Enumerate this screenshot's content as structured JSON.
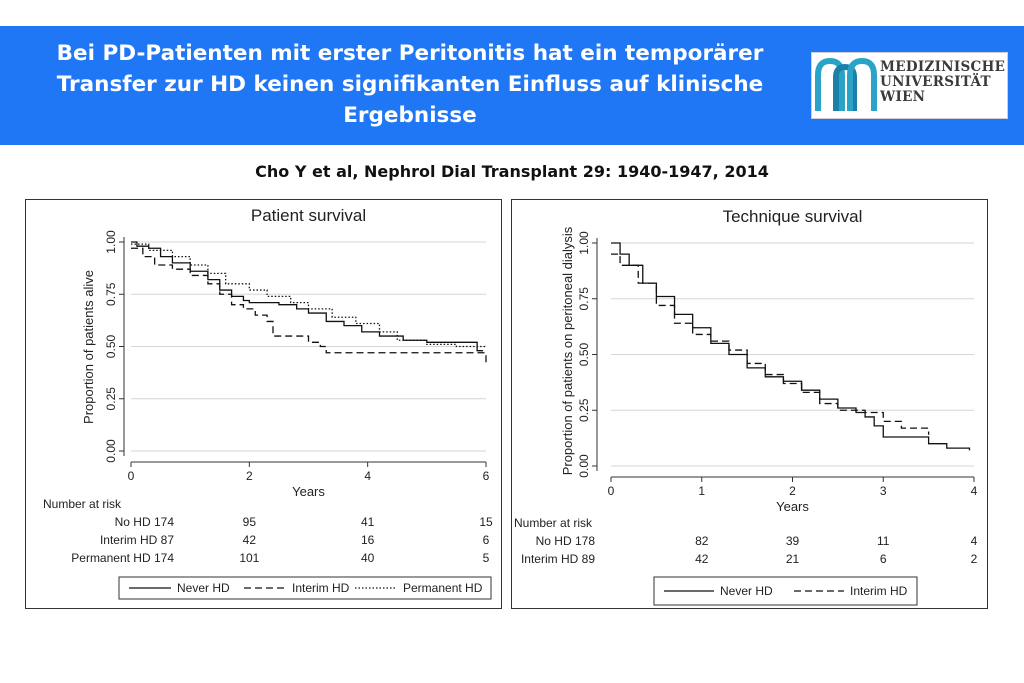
{
  "header": {
    "title": "Bei PD-Patienten mit erster Peritonitis hat ein temporärer Transfer zur HD keinen signifikanten Einfluss auf klinische Ergebnisse",
    "logo_lines": [
      "MEDIZINISCHE",
      "UNIVERSITÄT",
      "WIEN"
    ],
    "background_color": "#1f77f5"
  },
  "citation": "Cho Y et al, Nephrol Dial Transplant 29: 1940-1947, 2014",
  "chart_data": [
    {
      "type": "line",
      "title": "Patient survival",
      "xlabel": "Years",
      "ylabel": "Proportion of patients alive",
      "xlim": [
        0,
        6
      ],
      "ylim": [
        0,
        1
      ],
      "x_ticks": [
        0,
        2,
        4,
        6
      ],
      "y_ticks": [
        "0.00",
        "0.25",
        "0.50",
        "0.75",
        "1.00"
      ],
      "grid": true,
      "series": [
        {
          "name": "Never HD",
          "style": "solid",
          "points": [
            [
              0,
              1.0
            ],
            [
              0.1,
              0.98
            ],
            [
              0.3,
              0.97
            ],
            [
              0.5,
              0.93
            ],
            [
              0.7,
              0.9
            ],
            [
              1.0,
              0.86
            ],
            [
              1.3,
              0.82
            ],
            [
              1.5,
              0.77
            ],
            [
              1.7,
              0.74
            ],
            [
              1.9,
              0.72
            ],
            [
              2.0,
              0.71
            ],
            [
              2.5,
              0.7
            ],
            [
              2.8,
              0.68
            ],
            [
              3.0,
              0.66
            ],
            [
              3.3,
              0.62
            ],
            [
              3.6,
              0.6
            ],
            [
              3.9,
              0.57
            ],
            [
              4.2,
              0.55
            ],
            [
              4.6,
              0.53
            ],
            [
              5.0,
              0.52
            ],
            [
              5.5,
              0.52
            ],
            [
              5.85,
              0.52
            ],
            [
              5.85,
              0.48
            ],
            [
              5.95,
              0.48
            ]
          ]
        },
        {
          "name": "Interim HD",
          "style": "dashed",
          "points": [
            [
              0,
              0.97
            ],
            [
              0.2,
              0.93
            ],
            [
              0.4,
              0.89
            ],
            [
              0.7,
              0.87
            ],
            [
              1.0,
              0.84
            ],
            [
              1.3,
              0.8
            ],
            [
              1.5,
              0.75
            ],
            [
              1.7,
              0.7
            ],
            [
              1.9,
              0.68
            ],
            [
              2.1,
              0.65
            ],
            [
              2.3,
              0.62
            ],
            [
              2.4,
              0.55
            ],
            [
              2.9,
              0.55
            ],
            [
              3.0,
              0.52
            ],
            [
              3.2,
              0.5
            ],
            [
              3.3,
              0.47
            ],
            [
              4.0,
              0.47
            ],
            [
              5.0,
              0.47
            ],
            [
              5.9,
              0.47
            ],
            [
              6.0,
              0.42
            ]
          ]
        },
        {
          "name": "Permanent HD",
          "style": "dotted",
          "points": [
            [
              0,
              0.99
            ],
            [
              0.3,
              0.96
            ],
            [
              0.7,
              0.93
            ],
            [
              1.0,
              0.89
            ],
            [
              1.3,
              0.85
            ],
            [
              1.6,
              0.8
            ],
            [
              2.0,
              0.77
            ],
            [
              2.3,
              0.74
            ],
            [
              2.7,
              0.71
            ],
            [
              3.0,
              0.68
            ],
            [
              3.4,
              0.64
            ],
            [
              3.8,
              0.61
            ],
            [
              4.2,
              0.57
            ],
            [
              4.5,
              0.53
            ],
            [
              5.0,
              0.51
            ],
            [
              5.5,
              0.5
            ],
            [
              6.0,
              0.5
            ]
          ]
        }
      ],
      "risk_table": {
        "title": "Number at risk",
        "rows": [
          {
            "label": "No HD 174",
            "values": [
              "95",
              "41",
              "15"
            ]
          },
          {
            "label": "Interim HD 87",
            "values": [
              "42",
              "16",
              "6"
            ]
          },
          {
            "label": "Permanent HD 174",
            "values": [
              "101",
              "40",
              "5"
            ]
          }
        ]
      },
      "legend": {
        "position": "bottom",
        "entries": [
          "Never HD",
          "Interim HD",
          "Permanent HD"
        ]
      }
    },
    {
      "type": "line",
      "title": "Technique survival",
      "xlabel": "Years",
      "ylabel": "Proportion of patients on peritoneal dialysis",
      "xlim": [
        0,
        4
      ],
      "ylim": [
        0,
        1
      ],
      "x_ticks": [
        0,
        1,
        2,
        3,
        4
      ],
      "y_ticks": [
        "0.00",
        "0.25",
        "0.50",
        "0.75",
        "1.00"
      ],
      "grid": true,
      "series": [
        {
          "name": "Never HD",
          "style": "solid",
          "points": [
            [
              0,
              1.0
            ],
            [
              0.1,
              0.95
            ],
            [
              0.2,
              0.9
            ],
            [
              0.35,
              0.82
            ],
            [
              0.5,
              0.76
            ],
            [
              0.7,
              0.68
            ],
            [
              0.9,
              0.62
            ],
            [
              1.1,
              0.55
            ],
            [
              1.3,
              0.5
            ],
            [
              1.5,
              0.44
            ],
            [
              1.7,
              0.4
            ],
            [
              1.9,
              0.38
            ],
            [
              2.1,
              0.34
            ],
            [
              2.3,
              0.3
            ],
            [
              2.5,
              0.26
            ],
            [
              2.7,
              0.24
            ],
            [
              2.8,
              0.22
            ],
            [
              2.9,
              0.18
            ],
            [
              3.0,
              0.13
            ],
            [
              3.3,
              0.13
            ],
            [
              3.5,
              0.1
            ],
            [
              3.7,
              0.08
            ],
            [
              3.95,
              0.07
            ]
          ]
        },
        {
          "name": "Interim HD",
          "style": "dashed",
          "points": [
            [
              0,
              0.95
            ],
            [
              0.1,
              0.9
            ],
            [
              0.3,
              0.82
            ],
            [
              0.5,
              0.72
            ],
            [
              0.7,
              0.64
            ],
            [
              0.9,
              0.59
            ],
            [
              1.1,
              0.56
            ],
            [
              1.3,
              0.52
            ],
            [
              1.5,
              0.46
            ],
            [
              1.7,
              0.41
            ],
            [
              1.9,
              0.37
            ],
            [
              2.1,
              0.33
            ],
            [
              2.3,
              0.28
            ],
            [
              2.5,
              0.25
            ],
            [
              2.8,
              0.24
            ],
            [
              3.0,
              0.2
            ],
            [
              3.2,
              0.17
            ],
            [
              3.5,
              0.14
            ]
          ]
        }
      ],
      "risk_table": {
        "title": "Number at risk",
        "rows": [
          {
            "label": "No HD 178",
            "values": [
              "82",
              "39",
              "11",
              "4"
            ]
          },
          {
            "label": "Interim HD 89",
            "values": [
              "42",
              "21",
              "6",
              "2"
            ]
          }
        ]
      },
      "legend": {
        "position": "bottom",
        "entries": [
          "Never HD",
          "Interim HD"
        ]
      }
    }
  ]
}
